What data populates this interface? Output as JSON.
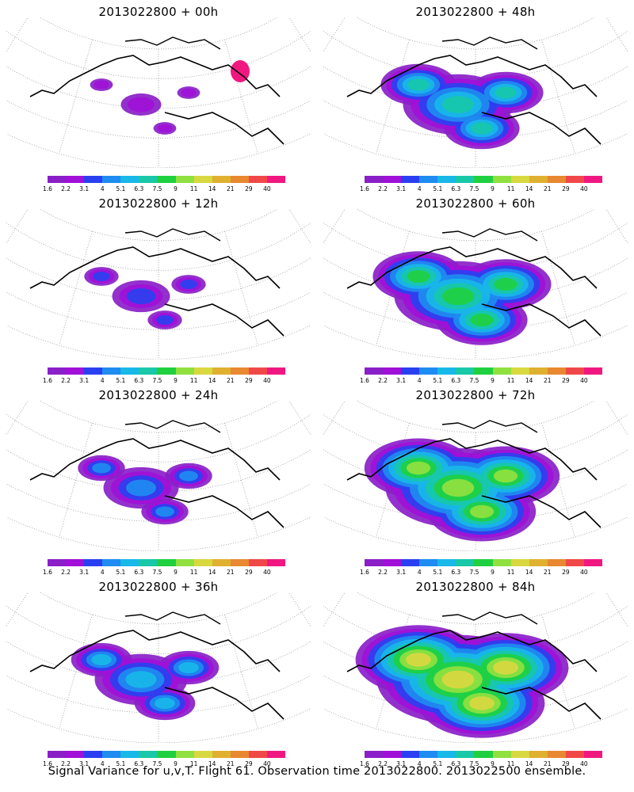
{
  "colorbar": {
    "labels": [
      "1.6",
      "2.2",
      "3.1",
      "4",
      "5.1",
      "6.3",
      "7.5",
      "9",
      "11",
      "14",
      "21",
      "29",
      "40"
    ],
    "colors": [
      "#8a1fc8",
      "#a010d8",
      "#2a40f0",
      "#1e8cf0",
      "#18b8e8",
      "#18c8a8",
      "#20d040",
      "#90e040",
      "#d8d840",
      "#e0b030",
      "#e88830",
      "#f04848",
      "#f01880"
    ]
  },
  "panels": [
    {
      "title": "2013022800 + 00h",
      "lead_hours": 0,
      "signal_level": 0.05
    },
    {
      "title": "2013022800 + 48h",
      "lead_hours": 48,
      "signal_level": 0.45
    },
    {
      "title": "2013022800 + 12h",
      "lead_hours": 12,
      "signal_level": 0.15
    },
    {
      "title": "2013022800 + 60h",
      "lead_hours": 60,
      "signal_level": 0.55
    },
    {
      "title": "2013022800 + 24h",
      "lead_hours": 24,
      "signal_level": 0.25
    },
    {
      "title": "2013022800 + 72h",
      "lead_hours": 72,
      "signal_level": 0.65
    },
    {
      "title": "2013022800 + 36h",
      "lead_hours": 36,
      "signal_level": 0.35
    },
    {
      "title": "2013022800 + 84h",
      "lead_hours": 84,
      "signal_level": 0.75
    }
  ],
  "footer": "Signal Variance for u,v,T. Flight 61. Observation time 2013022800. 2013022500 ensemble."
}
